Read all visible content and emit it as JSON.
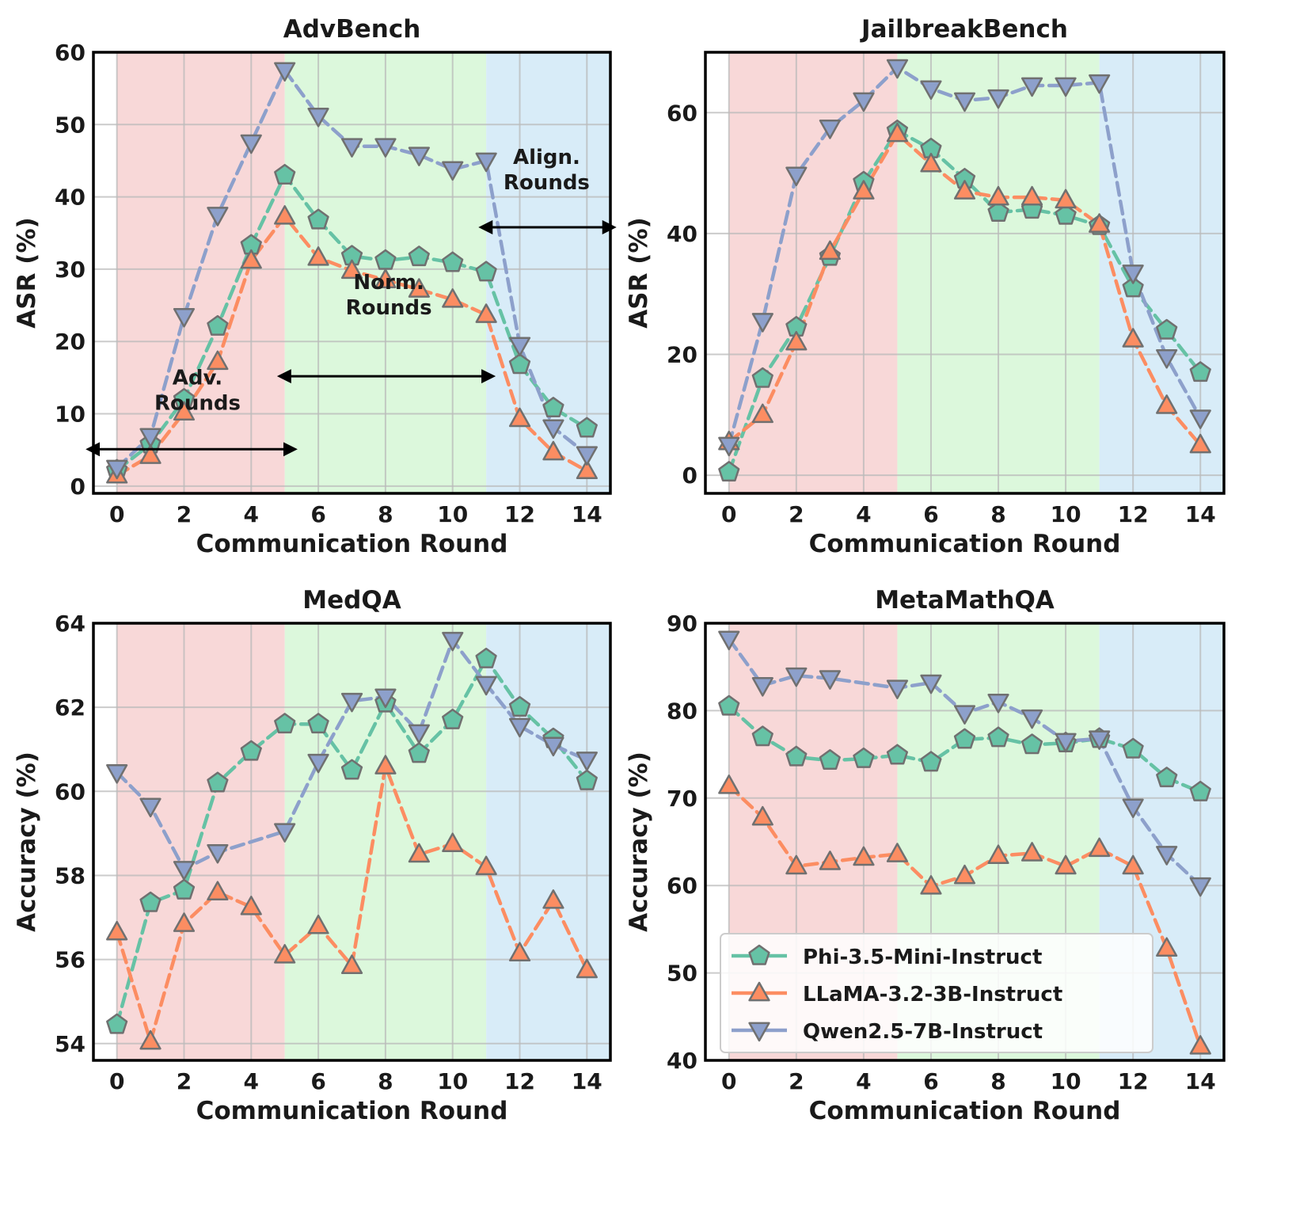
{
  "legend": {
    "entries": [
      {
        "name": "Phi-3.5-Mini-Instruct",
        "color": "#66c2a5",
        "marker": "pentagon"
      },
      {
        "name": "LLaMA-3.2-3B-Instruct",
        "color": "#fc8d62",
        "marker": "triangle-up"
      },
      {
        "name": "Qwen2.5-7B-Instruct",
        "color": "#8da0cb",
        "marker": "triangle-down"
      }
    ],
    "placement": "lower-left of MetaMathQA panel"
  },
  "phases": [
    {
      "name": "Adversarial rounds",
      "from": 0,
      "to": 5,
      "color": "#f8d8d8"
    },
    {
      "name": "Normal rounds",
      "from": 5,
      "to": 11,
      "color": "#dcf8dc"
    },
    {
      "name": "Alignment rounds",
      "from": 11,
      "to": 15,
      "color": "#d8ecf8"
    }
  ],
  "chart_data": [
    {
      "type": "line",
      "title": "AdvBench",
      "xlabel": "Communication Round",
      "ylabel": "ASR (%)",
      "xlim": [
        -0.7,
        14.7
      ],
      "ylim": [
        -1,
        60
      ],
      "xticks": [
        0,
        2,
        4,
        6,
        8,
        10,
        12,
        14
      ],
      "yticks": [
        0,
        10,
        20,
        30,
        40,
        50,
        60
      ],
      "x": [
        0,
        1,
        2,
        3,
        4,
        5,
        6,
        7,
        8,
        9,
        10,
        11,
        12,
        13,
        14
      ],
      "series": [
        {
          "name": "Phi-3.5-Mini-Instruct",
          "values": [
            2.2,
            5.8,
            12,
            22.1,
            33.3,
            43,
            36.8,
            31.8,
            31.2,
            31.7,
            30.9,
            29.6,
            16.8,
            10.8,
            8
          ]
        },
        {
          "name": "LLaMA-3.2-3B-Instruct",
          "values": [
            1.5,
            4.2,
            10.2,
            17.2,
            31.2,
            37.3,
            31.6,
            29.8,
            28.5,
            27.2,
            25.8,
            23.7,
            9.3,
            4.7,
            2.1
          ]
        },
        {
          "name": "Qwen2.5-7B-Instruct",
          "values": [
            2.5,
            6.9,
            23.5,
            37.5,
            47.5,
            57.5,
            51.2,
            47,
            47,
            45.8,
            43.8,
            45,
            19.5,
            8.1,
            4.4
          ]
        }
      ],
      "annotations": [
        {
          "lines": [
            "Adv.",
            "Rounds"
          ],
          "x": 2.4,
          "y": 9.3,
          "arrow": [
            -0.55,
            5
          ]
        },
        {
          "lines": [
            "Norm.",
            "Rounds"
          ],
          "x": 8.1,
          "y": 19.4,
          "arrow": [
            5.15,
            10.9
          ]
        },
        {
          "lines": [
            "Align.",
            "Rounds"
          ],
          "x": 12.8,
          "y": 40.2,
          "arrow": [
            11.15,
            14.5
          ]
        }
      ]
    },
    {
      "type": "line",
      "title": "JailbreakBench",
      "xlabel": "Communication Round",
      "ylabel": "ASR (%)",
      "xlim": [
        -0.7,
        14.7
      ],
      "ylim": [
        -3,
        70
      ],
      "xticks": [
        0,
        2,
        4,
        6,
        8,
        10,
        12,
        14
      ],
      "yticks": [
        0,
        20,
        40,
        60
      ],
      "x": [
        0,
        1,
        2,
        3,
        4,
        5,
        6,
        7,
        8,
        9,
        10,
        11,
        12,
        13,
        14
      ],
      "series": [
        {
          "name": "Phi-3.5-Mini-Instruct",
          "values": [
            0.5,
            16,
            24.5,
            36.2,
            48.5,
            57,
            54,
            49,
            43.5,
            44,
            43,
            41.3,
            31,
            24,
            17
          ]
        },
        {
          "name": "LLaMA-3.2-3B-Instruct",
          "values": [
            5.5,
            10,
            22,
            37,
            47,
            56.5,
            51.5,
            47,
            46,
            46,
            45.5,
            41.5,
            22.5,
            11.5,
            5
          ]
        },
        {
          "name": "Qwen2.5-7B-Instruct",
          "values": [
            5,
            25.5,
            49.7,
            57.5,
            62,
            67.5,
            64,
            62,
            62.5,
            64.5,
            64.5,
            65,
            33.5,
            19.5,
            9.5
          ]
        }
      ]
    },
    {
      "type": "line",
      "title": "MedQA",
      "xlabel": "Communication Round",
      "ylabel": "Accuracy (%)",
      "xlim": [
        -0.7,
        14.7
      ],
      "ylim": [
        53.6,
        64
      ],
      "xticks": [
        0,
        2,
        4,
        6,
        8,
        10,
        12,
        14
      ],
      "yticks": [
        54,
        56,
        58,
        60,
        62,
        64
      ],
      "x": [
        0,
        1,
        2,
        3,
        4,
        5,
        6,
        7,
        8,
        9,
        10,
        11,
        12,
        13,
        14
      ],
      "series": [
        {
          "name": "Phi-3.5-Mini-Instruct",
          "values": [
            54.45,
            57.35,
            57.65,
            60.2,
            60.95,
            61.6,
            61.6,
            60.5,
            62.1,
            60.9,
            61.7,
            63.15,
            62,
            61.25,
            60.25
          ]
        },
        {
          "name": "LLaMA-3.2-3B-Instruct",
          "values": [
            56.65,
            54.05,
            56.85,
            57.6,
            57.25,
            56.1,
            56.8,
            55.85,
            60.6,
            58.5,
            58.75,
            58.2,
            56.15,
            57.4,
            55.75
          ]
        },
        {
          "name": "Qwen2.5-7B-Instruct",
          "values": [
            60.45,
            59.65,
            58.15,
            58.55,
            null,
            59.05,
            60.7,
            62.15,
            62.25,
            61.4,
            63.6,
            62.55,
            61.55,
            61.1,
            60.75
          ]
        }
      ]
    },
    {
      "type": "line",
      "title": "MetaMathQA",
      "xlabel": "Communication Round",
      "ylabel": "Accuracy (%)",
      "xlim": [
        -0.7,
        14.7
      ],
      "ylim": [
        40,
        90
      ],
      "xticks": [
        0,
        2,
        4,
        6,
        8,
        10,
        12,
        14
      ],
      "yticks": [
        40,
        50,
        60,
        70,
        80,
        90
      ],
      "x": [
        0,
        1,
        2,
        3,
        4,
        5,
        6,
        7,
        8,
        9,
        10,
        11,
        12,
        13,
        14
      ],
      "series": [
        {
          "name": "Phi-3.5-Mini-Instruct",
          "values": [
            80.5,
            77,
            74.7,
            74.3,
            74.5,
            74.9,
            74.1,
            76.7,
            76.9,
            76.1,
            76.3,
            76.8,
            75.6,
            72.3,
            70.7
          ]
        },
        {
          "name": "LLaMA-3.2-3B-Instruct",
          "values": [
            71.4,
            67.8,
            62.2,
            62.7,
            63.2,
            63.6,
            59.9,
            61.1,
            63.4,
            63.7,
            62.2,
            64.2,
            62.2,
            52.8,
            41.6
          ]
        },
        {
          "name": "Qwen2.5-7B-Instruct",
          "values": [
            88.2,
            82.9,
            84,
            83.7,
            null,
            82.6,
            83.2,
            79.7,
            81,
            79.2,
            76.5,
            76.8,
            69,
            63.6,
            60
          ]
        }
      ]
    }
  ]
}
